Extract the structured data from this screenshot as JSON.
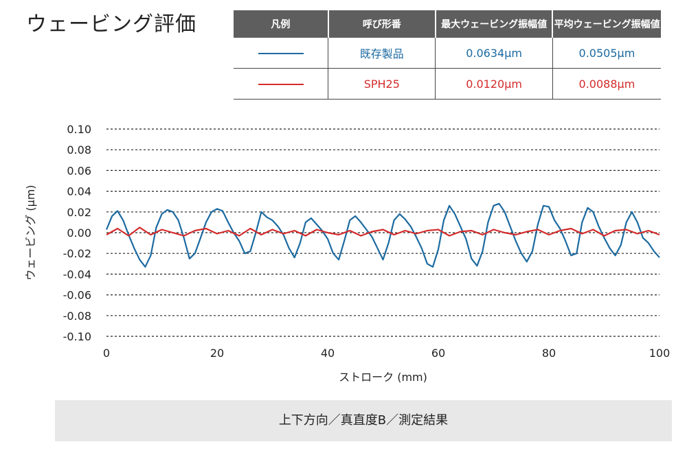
{
  "page_title": "ウェービング評価",
  "legend_table": {
    "headers": [
      "凡例",
      "呼び形番",
      "最大ウェービング振幅値",
      "平均ウェービング振幅値"
    ],
    "rows": [
      {
        "name": "既存製品",
        "max": "0.0634μm",
        "avg": "0.0505μm",
        "color": "#1b6aa0"
      },
      {
        "name": "SPH25",
        "max": "0.0120μm",
        "avg": "0.0088μm",
        "color": "#d42b2b"
      }
    ]
  },
  "footer_caption": "上下方向／真直度B／測定結果",
  "chart_data": {
    "type": "line",
    "xlabel": "ストローク (mm)",
    "ylabel": "ウェービング (μm)",
    "xlim": [
      0,
      100
    ],
    "ylim": [
      -0.1,
      0.1
    ],
    "x_ticks": [
      "0",
      "20",
      "40",
      "60",
      "80",
      "100"
    ],
    "y_ticks": [
      "0.10",
      "0.08",
      "0.06",
      "0.04",
      "0.02",
      "0.00",
      "-0.02",
      "-0.04",
      "-0.06",
      "-0.08",
      "-0.10"
    ],
    "grid": "horizontal dashed",
    "series": [
      {
        "name": "既存製品",
        "color": "#1b6aa0",
        "x": [
          0,
          1,
          2,
          3,
          4,
          5,
          6,
          7,
          8,
          9,
          10,
          11,
          12,
          13,
          14,
          15,
          16,
          17,
          18,
          19,
          20,
          21,
          22,
          23,
          24,
          25,
          26,
          27,
          28,
          29,
          30,
          31,
          32,
          33,
          34,
          35,
          36,
          37,
          38,
          39,
          40,
          41,
          42,
          43,
          44,
          45,
          46,
          47,
          48,
          49,
          50,
          51,
          52,
          53,
          54,
          55,
          56,
          57,
          58,
          59,
          60,
          61,
          62,
          63,
          64,
          65,
          66,
          67,
          68,
          69,
          70,
          71,
          72,
          73,
          74,
          75,
          76,
          77,
          78,
          79,
          80,
          81,
          82,
          83,
          84,
          85,
          86,
          87,
          88,
          89,
          90,
          91,
          92,
          93,
          94,
          95,
          96,
          97,
          98,
          99,
          100
        ],
        "y": [
          0.003,
          0.016,
          0.021,
          0.012,
          -0.002,
          -0.015,
          -0.026,
          -0.033,
          -0.022,
          0.005,
          0.018,
          0.022,
          0.02,
          0.012,
          -0.005,
          -0.025,
          -0.02,
          -0.005,
          0.01,
          0.02,
          0.023,
          0.021,
          0.01,
          0.0,
          -0.008,
          -0.02,
          -0.018,
          0.0,
          0.02,
          0.015,
          0.012,
          0.006,
          -0.002,
          -0.015,
          -0.024,
          -0.01,
          0.01,
          0.014,
          0.008,
          0.002,
          -0.006,
          -0.02,
          -0.026,
          -0.008,
          0.012,
          0.016,
          0.01,
          0.003,
          -0.004,
          -0.015,
          -0.026,
          -0.01,
          0.012,
          0.018,
          0.013,
          0.006,
          -0.004,
          -0.015,
          -0.03,
          -0.033,
          -0.016,
          0.012,
          0.026,
          0.018,
          0.006,
          -0.006,
          -0.025,
          -0.032,
          -0.018,
          0.01,
          0.026,
          0.028,
          0.02,
          0.006,
          -0.008,
          -0.02,
          -0.028,
          -0.018,
          0.008,
          0.026,
          0.025,
          0.012,
          0.004,
          -0.008,
          -0.022,
          -0.02,
          0.01,
          0.024,
          0.02,
          0.006,
          -0.005,
          -0.015,
          -0.022,
          -0.012,
          0.01,
          0.02,
          0.01,
          -0.005,
          -0.01,
          -0.018,
          -0.024
        ]
      },
      {
        "name": "SPH25",
        "color": "#d42b2b",
        "x": [
          0,
          2,
          4,
          6,
          8,
          10,
          12,
          14,
          16,
          18,
          20,
          22,
          24,
          26,
          28,
          30,
          32,
          34,
          36,
          38,
          40,
          42,
          44,
          46,
          48,
          50,
          52,
          54,
          56,
          58,
          60,
          62,
          64,
          66,
          68,
          70,
          72,
          74,
          76,
          78,
          80,
          82,
          84,
          86,
          88,
          90,
          92,
          94,
          96,
          98,
          100
        ],
        "y": [
          -0.002,
          0.004,
          -0.003,
          0.005,
          -0.002,
          0.003,
          0.0,
          -0.003,
          0.002,
          0.004,
          -0.001,
          0.002,
          -0.003,
          0.004,
          -0.002,
          0.003,
          -0.001,
          0.002,
          -0.003,
          0.003,
          0.0,
          -0.002,
          0.002,
          -0.003,
          0.001,
          0.003,
          -0.002,
          0.002,
          -0.001,
          0.002,
          0.003,
          -0.003,
          0.001,
          0.002,
          -0.002,
          0.003,
          0.0,
          -0.002,
          0.001,
          0.003,
          -0.002,
          0.002,
          0.004,
          -0.001,
          0.003,
          -0.003,
          0.002,
          0.003,
          -0.001,
          0.002,
          -0.002
        ]
      }
    ]
  }
}
